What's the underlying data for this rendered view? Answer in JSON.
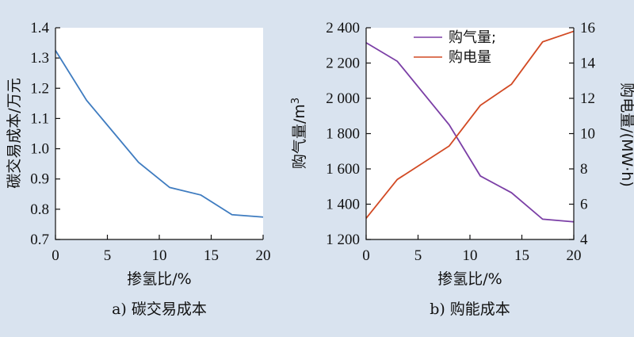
{
  "colors": {
    "background": "#d9e3ef",
    "plot_bg": "#ffffff",
    "carbon_line": "#3f7cc0",
    "gas_line": "#7b3fa6",
    "elec_line": "#d24a24",
    "axis": "#111111"
  },
  "chart_data": [
    {
      "type": "line",
      "caption": "a) 碳交易成本",
      "xlabel": "掺氢比/%",
      "ylabel": "碳交易成本/万元",
      "xlim": [
        0,
        20
      ],
      "ylim": [
        0.7,
        1.4
      ],
      "x_ticks": [
        0,
        5,
        10,
        15,
        20
      ],
      "y_ticks": [
        0.7,
        0.8,
        0.9,
        1.0,
        1.1,
        1.2,
        1.3,
        1.4
      ],
      "x_tick_labels": [
        "0",
        "5",
        "10",
        "15",
        "20"
      ],
      "y_tick_labels": [
        "0.7",
        "0.8",
        "0.9",
        "1.0",
        "1.1",
        "1.2",
        "1.3",
        "1.4"
      ],
      "grid": false,
      "series": [
        {
          "color_key": "carbon_line",
          "x": [
            0,
            3,
            8,
            11,
            14,
            17,
            20
          ],
          "y": [
            1.325,
            1.16,
            0.955,
            0.872,
            0.847,
            0.782,
            0.774
          ]
        }
      ]
    },
    {
      "type": "line",
      "caption": "b) 购能成本",
      "xlabel": "掺氢比/%",
      "ylabel_left": "购气量/m",
      "ylabel_left_sup": "3",
      "ylabel_right": "购电量/(MW·h)",
      "xlim": [
        0,
        20
      ],
      "ylim_left": [
        1200,
        2400
      ],
      "ylim_right": [
        4,
        16
      ],
      "x_ticks": [
        0,
        5,
        10,
        15,
        20
      ],
      "x_tick_labels": [
        "0",
        "5",
        "10",
        "15",
        "20"
      ],
      "y_left_ticks": [
        1200,
        1400,
        1600,
        1800,
        2000,
        2200,
        2400
      ],
      "y_left_tick_labels": [
        "1 200",
        "1 400",
        "1 600",
        "1 800",
        "2 000",
        "2 200",
        "2 400"
      ],
      "y_right_ticks": [
        4,
        6,
        8,
        10,
        12,
        14,
        16
      ],
      "y_right_tick_labels": [
        "4",
        "6",
        "8",
        "10",
        "12",
        "14",
        "16"
      ],
      "grid": false,
      "legend_position": "top-right",
      "series": [
        {
          "name": "购气量;",
          "axis": "left",
          "color_key": "gas_line",
          "x": [
            0,
            3,
            8,
            11,
            14,
            17,
            20
          ],
          "y": [
            2315,
            2210,
            1850,
            1560,
            1465,
            1315,
            1300
          ]
        },
        {
          "name": "购电量",
          "axis": "right",
          "color_key": "elec_line",
          "x": [
            0,
            3,
            8,
            11,
            14,
            17,
            20
          ],
          "y": [
            5.2,
            7.4,
            9.3,
            11.6,
            12.8,
            15.2,
            15.8
          ]
        }
      ]
    }
  ]
}
